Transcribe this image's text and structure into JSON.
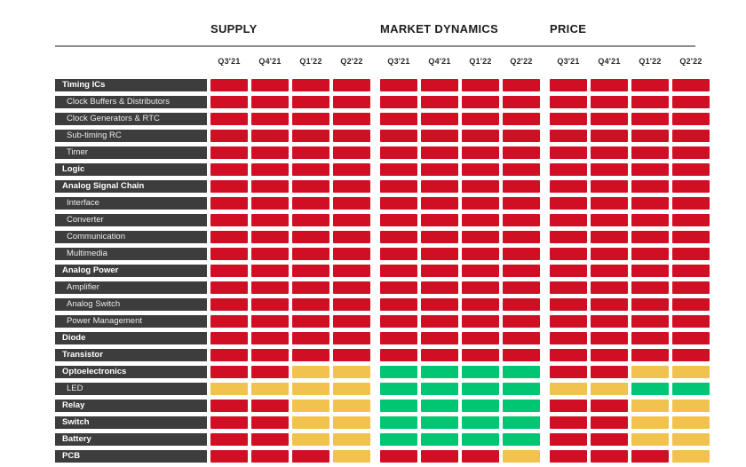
{
  "chart_data": {
    "type": "heatmap",
    "title": "",
    "column_groups": [
      "SUPPLY",
      "MARKET DYNAMICS",
      "PRICE"
    ],
    "group_keys": [
      "supply",
      "market_dynamics",
      "price"
    ],
    "columns_per_group": [
      "Q3'21",
      "Q4'21",
      "Q1'22",
      "Q2'22"
    ],
    "palette": {
      "R": "#d00f24",
      "Y": "#f1c34e",
      "G": "#00c573"
    },
    "legend": {
      "R": "red-negative",
      "Y": "yellow-caution",
      "G": "green-positive"
    },
    "row_label_bg": "#3d3d3d",
    "rows": [
      {
        "label": "Timing ICs",
        "category": true,
        "supply": "RRRR",
        "market_dynamics": "RRRR",
        "price": "RRRR"
      },
      {
        "label": "Clock Buffers & Distributors",
        "category": false,
        "supply": "RRRR",
        "market_dynamics": "RRRR",
        "price": "RRRR"
      },
      {
        "label": "Clock Generators & RTC",
        "category": false,
        "supply": "RRRR",
        "market_dynamics": "RRRR",
        "price": "RRRR"
      },
      {
        "label": "Sub-timing RC",
        "category": false,
        "supply": "RRRR",
        "market_dynamics": "RRRR",
        "price": "RRRR"
      },
      {
        "label": "Timer",
        "category": false,
        "supply": "RRRR",
        "market_dynamics": "RRRR",
        "price": "RRRR"
      },
      {
        "label": "Logic",
        "category": true,
        "supply": "RRRR",
        "market_dynamics": "RRRR",
        "price": "RRRR"
      },
      {
        "label": "Analog Signal Chain",
        "category": true,
        "supply": "RRRR",
        "market_dynamics": "RRRR",
        "price": "RRRR"
      },
      {
        "label": "Interface",
        "category": false,
        "supply": "RRRR",
        "market_dynamics": "RRRR",
        "price": "RRRR"
      },
      {
        "label": "Converter",
        "category": false,
        "supply": "RRRR",
        "market_dynamics": "RRRR",
        "price": "RRRR"
      },
      {
        "label": "Communication",
        "category": false,
        "supply": "RRRR",
        "market_dynamics": "RRRR",
        "price": "RRRR"
      },
      {
        "label": "Multimedia",
        "category": false,
        "supply": "RRRR",
        "market_dynamics": "RRRR",
        "price": "RRRR"
      },
      {
        "label": "Analog Power",
        "category": true,
        "supply": "RRRR",
        "market_dynamics": "RRRR",
        "price": "RRRR"
      },
      {
        "label": "Amplifier",
        "category": false,
        "supply": "RRRR",
        "market_dynamics": "RRRR",
        "price": "RRRR"
      },
      {
        "label": "Analog Switch",
        "category": false,
        "supply": "RRRR",
        "market_dynamics": "RRRR",
        "price": "RRRR"
      },
      {
        "label": "Power Management",
        "category": false,
        "supply": "RRRR",
        "market_dynamics": "RRRR",
        "price": "RRRR"
      },
      {
        "label": "Diode",
        "category": true,
        "supply": "RRRR",
        "market_dynamics": "RRRR",
        "price": "RRRR"
      },
      {
        "label": "Transistor",
        "category": true,
        "supply": "RRRR",
        "market_dynamics": "RRRR",
        "price": "RRRR"
      },
      {
        "label": "Optoelectronics",
        "category": true,
        "supply": "RRYY",
        "market_dynamics": "GGGG",
        "price": "RRYY"
      },
      {
        "label": "LED",
        "category": false,
        "supply": "YYYY",
        "market_dynamics": "GGGG",
        "price": "YYGG"
      },
      {
        "label": "Relay",
        "category": true,
        "supply": "RRYY",
        "market_dynamics": "GGGG",
        "price": "RRYY"
      },
      {
        "label": "Switch",
        "category": true,
        "supply": "RRYY",
        "market_dynamics": "GGGG",
        "price": "RRYY"
      },
      {
        "label": "Battery",
        "category": true,
        "supply": "RRYY",
        "market_dynamics": "GGGG",
        "price": "RRYY"
      },
      {
        "label": "PCB",
        "category": true,
        "supply": "RRRY",
        "market_dynamics": "RRRY",
        "price": "RRRY"
      }
    ]
  }
}
